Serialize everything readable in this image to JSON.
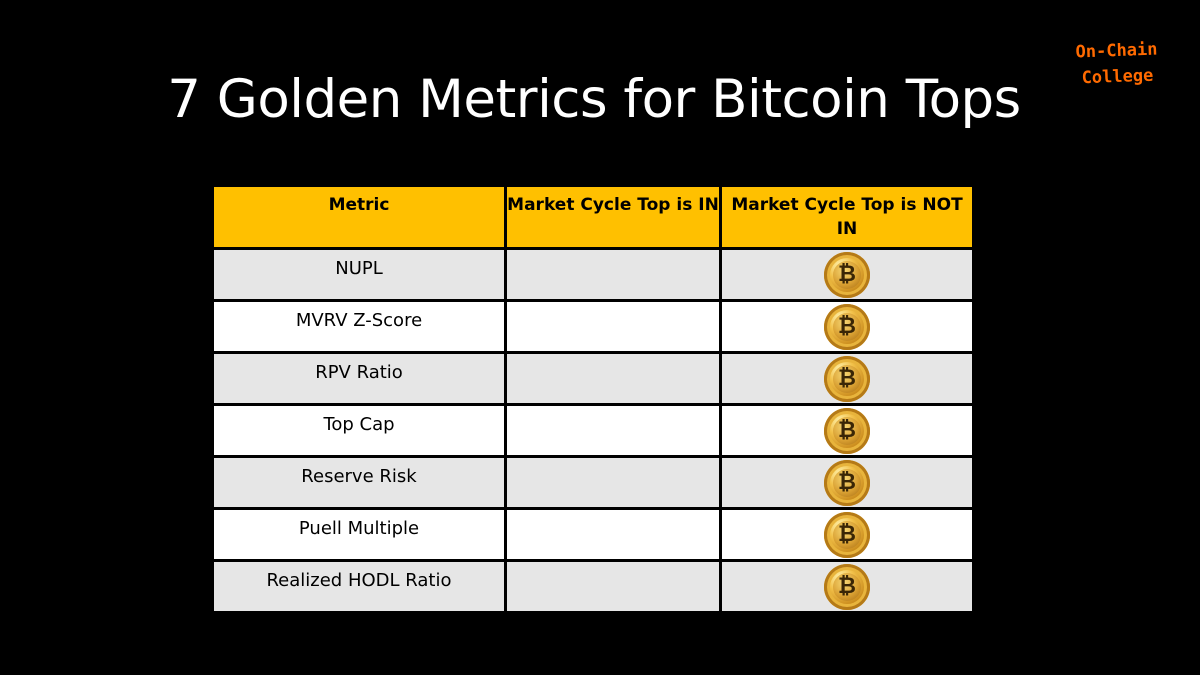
{
  "slide": {
    "title": "7 Golden Metrics for Bitcoin Tops",
    "brand": {
      "line1": "On-Chain",
      "line2": "College",
      "color": "#ff6a00"
    }
  },
  "table": {
    "header_color": "#ffc000",
    "columns": [
      "Metric",
      "Market Cycle Top is IN",
      "Market Cycle Top is NOT IN"
    ],
    "rows": [
      {
        "metric": "NUPL",
        "top_in": "",
        "top_not_in_icon": "bitcoin-coin-icon"
      },
      {
        "metric": "MVRV Z-Score",
        "top_in": "",
        "top_not_in_icon": "bitcoin-coin-icon"
      },
      {
        "metric": "RPV Ratio",
        "top_in": "",
        "top_not_in_icon": "bitcoin-coin-icon"
      },
      {
        "metric": "Top Cap",
        "top_in": "",
        "top_not_in_icon": "bitcoin-coin-icon"
      },
      {
        "metric": "Reserve Risk",
        "top_in": "",
        "top_not_in_icon": "bitcoin-coin-icon"
      },
      {
        "metric": "Puell Multiple",
        "top_in": "",
        "top_not_in_icon": "bitcoin-coin-icon"
      },
      {
        "metric": "Realized HODL Ratio",
        "top_in": "",
        "top_not_in_icon": "bitcoin-coin-icon"
      }
    ],
    "coin_symbol": "₿"
  }
}
